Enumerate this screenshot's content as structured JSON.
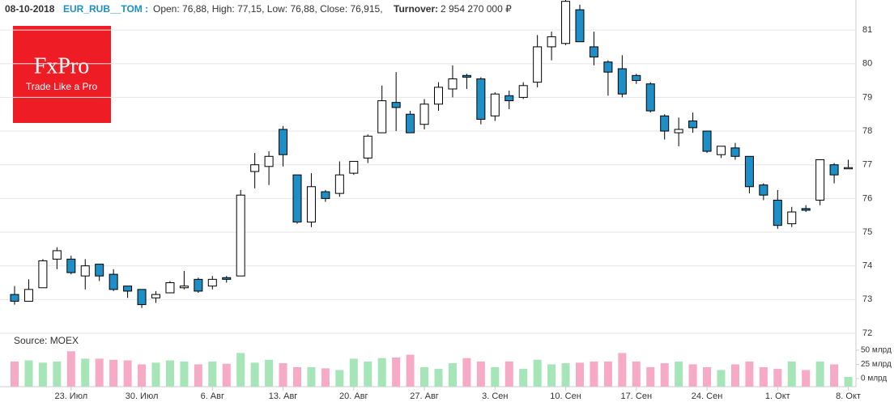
{
  "header": {
    "date": "08-10-2018",
    "symbol": "EUR_RUB__TOM :",
    "ohlc": "Open: 76,88, High: 77,15, Low: 76,88, Close: 76,915,",
    "turnover_label": "Turnover:",
    "turnover_value": "2 954 270 000 ₽"
  },
  "logo": {
    "name": "FxPro",
    "slogan": "Trade Like a Pro"
  },
  "source": "Source: MOEX",
  "chart_data": {
    "type": "candlestick",
    "categories": [
      null,
      null,
      null,
      null,
      "23. Июл",
      null,
      null,
      null,
      null,
      "30. Июл",
      null,
      null,
      null,
      null,
      "6. Авг",
      null,
      null,
      null,
      null,
      "13. Авг",
      null,
      null,
      null,
      null,
      "20. Авг",
      null,
      null,
      null,
      null,
      "27. Авг",
      null,
      null,
      null,
      null,
      "3. Сен",
      null,
      null,
      null,
      null,
      "10. Сен",
      null,
      null,
      null,
      null,
      "17. Сен",
      null,
      null,
      null,
      null,
      "24. Сен",
      null,
      null,
      null,
      null,
      "1. Окт",
      null,
      null,
      null,
      null,
      "8. Окт"
    ],
    "open": [
      73.15,
      72.95,
      73.35,
      74.2,
      74.2,
      73.7,
      74.05,
      73.75,
      73.4,
      73.3,
      73.05,
      73.2,
      73.35,
      73.6,
      73.4,
      73.65,
      73.7,
      76.8,
      76.95,
      78.05,
      76.7,
      75.3,
      76.2,
      76.15,
      76.75,
      77.2,
      77.95,
      78.85,
      78.5,
      78.2,
      78.8,
      79.25,
      79.65,
      79.55,
      78.45,
      79.05,
      79.0,
      79.45,
      80.5,
      80.6,
      81.6,
      80.5,
      80.05,
      79.85,
      79.65,
      79.4,
      78.45,
      77.95,
      78.3,
      78.0,
      77.3,
      77.5,
      77.25,
      76.4,
      75.95,
      75.25,
      75.7,
      75.95,
      77.0,
      76.88
    ],
    "high": [
      73.4,
      73.6,
      74.2,
      74.55,
      74.3,
      74.2,
      74.05,
      73.9,
      73.4,
      73.3,
      73.25,
      73.55,
      73.85,
      73.65,
      73.7,
      73.7,
      76.25,
      77.35,
      77.4,
      78.15,
      76.7,
      76.75,
      76.25,
      77.1,
      77.1,
      77.9,
      79.35,
      79.75,
      78.6,
      78.95,
      79.45,
      79.95,
      79.7,
      79.6,
      79.15,
      79.2,
      79.45,
      80.85,
      80.95,
      81.9,
      81.75,
      80.95,
      80.1,
      80.25,
      79.7,
      79.45,
      78.5,
      78.4,
      78.55,
      78.0,
      77.55,
      77.65,
      77.25,
      76.45,
      76.25,
      75.75,
      75.8,
      77.15,
      77.05,
      77.15
    ],
    "low": [
      72.85,
      72.95,
      73.35,
      73.9,
      73.75,
      73.3,
      73.55,
      73.25,
      73.05,
      72.75,
      72.9,
      73.2,
      73.3,
      73.2,
      73.3,
      73.5,
      73.7,
      76.3,
      76.4,
      76.95,
      75.25,
      75.15,
      75.9,
      76.05,
      76.7,
      77.05,
      77.95,
      78.0,
      77.95,
      78.05,
      78.6,
      79.0,
      79.25,
      78.2,
      78.3,
      78.65,
      78.95,
      79.3,
      80.1,
      80.55,
      80.65,
      79.95,
      79.05,
      79.0,
      79.4,
      78.55,
      77.75,
      77.55,
      77.95,
      77.35,
      77.2,
      77.15,
      76.15,
      75.95,
      75.1,
      75.15,
      75.6,
      75.8,
      76.45,
      76.88
    ],
    "close": [
      72.95,
      73.3,
      74.15,
      74.45,
      73.8,
      74.0,
      73.7,
      73.3,
      73.25,
      72.85,
      73.15,
      73.5,
      73.4,
      73.25,
      73.6,
      73.6,
      76.1,
      77.0,
      77.25,
      77.3,
      75.3,
      76.35,
      76.0,
      76.7,
      77.1,
      77.85,
      78.9,
      78.7,
      77.95,
      78.8,
      79.3,
      79.55,
      79.6,
      78.35,
      79.1,
      78.9,
      79.35,
      80.5,
      80.8,
      81.85,
      80.65,
      80.2,
      79.75,
      79.1,
      79.5,
      78.6,
      78.0,
      78.05,
      78.1,
      77.4,
      77.55,
      77.25,
      76.35,
      76.1,
      75.2,
      75.6,
      75.65,
      77.15,
      76.7,
      76.915
    ],
    "volume": [
      30,
      32,
      28,
      30,
      48,
      35,
      35,
      33,
      32,
      25,
      28,
      32,
      30,
      25,
      30,
      26,
      45,
      28,
      33,
      27,
      20,
      20,
      18,
      15,
      35,
      30,
      36,
      37,
      42,
      20,
      17,
      27,
      36,
      30,
      20,
      30,
      17,
      33,
      25,
      27,
      28,
      30,
      30,
      45,
      30,
      20,
      27,
      30,
      25,
      20,
      15,
      25,
      30,
      20,
      17,
      30,
      15,
      30,
      25,
      2.95
    ],
    "up_color": "#ffffff",
    "down_color": "#1e8fc6",
    "up_volume_color": "#a6e5b8",
    "down_volume_color": "#f6aac6",
    "ylim": [
      72,
      81.89
    ],
    "yticks": [
      72,
      73,
      74,
      75,
      76,
      77,
      78,
      79,
      80,
      81
    ],
    "y2lim": [
      0,
      57
    ],
    "y2ticks": [
      {
        "value": 0,
        "label": "0 млрд"
      },
      {
        "value": 25,
        "label": "25 млрд"
      },
      {
        "value": 50,
        "label": "50 млрд"
      }
    ],
    "grid": true
  }
}
